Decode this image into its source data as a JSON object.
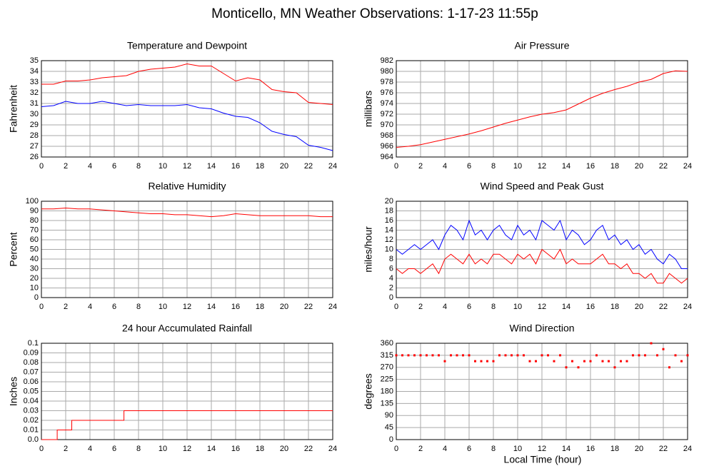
{
  "title": "Monticello, MN Weather Observations: 1-17-23 11:55p",
  "xlabel": "Local Time (hour)",
  "chart_data": [
    {
      "type": "line",
      "title": "Temperature and Dewpoint",
      "ylabel": "Fahrenheit",
      "x": [
        0,
        1,
        2,
        3,
        4,
        5,
        6,
        7,
        8,
        9,
        10,
        11,
        12,
        13,
        14,
        15,
        16,
        17,
        18,
        19,
        20,
        21,
        22,
        23,
        24
      ],
      "series": [
        {
          "name": "Temperature",
          "color": "#ff0000",
          "values": [
            32.8,
            32.8,
            33.1,
            33.1,
            33.2,
            33.4,
            33.5,
            33.6,
            34.0,
            34.2,
            34.3,
            34.4,
            34.7,
            34.5,
            34.5,
            33.8,
            33.1,
            33.4,
            33.2,
            32.3,
            32.1,
            32.0,
            31.1,
            31.0,
            30.9
          ]
        },
        {
          "name": "Dewpoint",
          "color": "#0000ff",
          "values": [
            30.7,
            30.8,
            31.2,
            31.0,
            31.0,
            31.2,
            31.0,
            30.8,
            30.9,
            30.8,
            30.8,
            30.8,
            30.9,
            30.6,
            30.5,
            30.1,
            29.8,
            29.7,
            29.2,
            28.4,
            28.1,
            27.9,
            27.1,
            26.9,
            26.6
          ]
        }
      ],
      "xlim": [
        0,
        24
      ],
      "xticks": [
        0,
        2,
        4,
        6,
        8,
        10,
        12,
        14,
        16,
        18,
        20,
        22,
        24
      ],
      "ylim": [
        26,
        35
      ],
      "yticks": [
        26,
        27,
        28,
        29,
        30,
        31,
        32,
        33,
        34,
        35
      ],
      "grid": true
    },
    {
      "type": "line",
      "title": "Air Pressure",
      "ylabel": "millibars",
      "x": [
        0,
        1,
        2,
        3,
        4,
        5,
        6,
        7,
        8,
        9,
        10,
        11,
        12,
        13,
        14,
        15,
        16,
        17,
        18,
        19,
        20,
        21,
        22,
        23,
        24
      ],
      "series": [
        {
          "name": "Pressure",
          "color": "#ff0000",
          "values": [
            965.8,
            966.0,
            966.3,
            966.8,
            967.3,
            967.8,
            968.3,
            968.9,
            969.6,
            970.3,
            970.9,
            971.5,
            972.0,
            972.3,
            972.8,
            973.9,
            975.0,
            975.9,
            976.6,
            977.2,
            978.0,
            978.5,
            979.6,
            980.1,
            980.0
          ]
        }
      ],
      "xlim": [
        0,
        24
      ],
      "xticks": [
        0,
        2,
        4,
        6,
        8,
        10,
        12,
        14,
        16,
        18,
        20,
        22,
        24
      ],
      "ylim": [
        964,
        982
      ],
      "yticks": [
        964,
        966,
        968,
        970,
        972,
        974,
        976,
        978,
        980,
        982
      ],
      "grid": true
    },
    {
      "type": "line",
      "title": "Relative Humidity",
      "ylabel": "Percent",
      "x": [
        0,
        1,
        2,
        3,
        4,
        5,
        6,
        7,
        8,
        9,
        10,
        11,
        12,
        13,
        14,
        15,
        16,
        17,
        18,
        19,
        20,
        21,
        22,
        23,
        24
      ],
      "series": [
        {
          "name": "Humidity",
          "color": "#ff0000",
          "values": [
            92,
            92,
            93,
            92,
            92,
            91,
            90,
            89,
            88,
            87,
            87,
            86,
            86,
            85,
            84,
            85,
            87,
            86,
            85,
            85,
            85,
            85,
            85,
            84,
            84
          ]
        }
      ],
      "xlim": [
        0,
        24
      ],
      "xticks": [
        0,
        2,
        4,
        6,
        8,
        10,
        12,
        14,
        16,
        18,
        20,
        22,
        24
      ],
      "ylim": [
        0,
        100
      ],
      "yticks": [
        0,
        10,
        20,
        30,
        40,
        50,
        60,
        70,
        80,
        90,
        100
      ],
      "grid": true
    },
    {
      "type": "line",
      "title": "Wind Speed and Peak Gust",
      "ylabel": "miles/hour",
      "x": [
        0,
        0.5,
        1,
        1.5,
        2,
        2.5,
        3,
        3.5,
        4,
        4.5,
        5,
        5.5,
        6,
        6.5,
        7,
        7.5,
        8,
        8.5,
        9,
        9.5,
        10,
        10.5,
        11,
        11.5,
        12,
        12.5,
        13,
        13.5,
        14,
        14.5,
        15,
        15.5,
        16,
        16.5,
        17,
        17.5,
        18,
        18.5,
        19,
        19.5,
        20,
        20.5,
        21,
        21.5,
        22,
        22.5,
        23,
        23.5,
        24
      ],
      "series": [
        {
          "name": "Peak Gust",
          "color": "#0000ff",
          "values": [
            10,
            9,
            10,
            11,
            10,
            11,
            12,
            10,
            13,
            15,
            14,
            12,
            16,
            13,
            14,
            12,
            14,
            15,
            13,
            12,
            15,
            13,
            14,
            12,
            16,
            15,
            14,
            16,
            12,
            14,
            13,
            11,
            12,
            14,
            15,
            12,
            13,
            11,
            12,
            10,
            11,
            9,
            10,
            8,
            7,
            9,
            8,
            6,
            6
          ]
        },
        {
          "name": "Wind Speed",
          "color": "#ff0000",
          "values": [
            6,
            5,
            6,
            6,
            5,
            6,
            7,
            5,
            8,
            9,
            8,
            7,
            9,
            7,
            8,
            7,
            9,
            9,
            8,
            7,
            9,
            8,
            9,
            7,
            10,
            9,
            8,
            10,
            7,
            8,
            7,
            7,
            7,
            8,
            9,
            7,
            7,
            6,
            7,
            5,
            5,
            4,
            5,
            3,
            3,
            5,
            4,
            3,
            4
          ]
        }
      ],
      "xlim": [
        0,
        24
      ],
      "xticks": [
        0,
        2,
        4,
        6,
        8,
        10,
        12,
        14,
        16,
        18,
        20,
        22,
        24
      ],
      "ylim": [
        0,
        20
      ],
      "yticks": [
        0,
        2,
        4,
        6,
        8,
        10,
        12,
        14,
        16,
        18,
        20
      ],
      "grid": true
    },
    {
      "type": "line",
      "title": "24 hour Accumulated Rainfall",
      "ylabel": "Inches",
      "x": [
        0,
        1.3,
        1.3,
        2.5,
        2.5,
        6.8,
        6.8,
        24
      ],
      "series": [
        {
          "name": "Rainfall",
          "color": "#ff0000",
          "values": [
            0,
            0,
            0.01,
            0.01,
            0.02,
            0.02,
            0.03,
            0.03
          ]
        }
      ],
      "xlim": [
        0,
        24
      ],
      "xticks": [
        0,
        2,
        4,
        6,
        8,
        10,
        12,
        14,
        16,
        18,
        20,
        22,
        24
      ],
      "ylim": [
        0,
        0.1
      ],
      "yticks": [
        {
          "value": 0,
          "label": "0.0"
        },
        0.01,
        0.02,
        0.03,
        0.04,
        0.05,
        0.06,
        0.07,
        0.08,
        0.09,
        0.1
      ],
      "grid": true
    },
    {
      "type": "scatter",
      "title": "Wind Direction",
      "ylabel": "degrees",
      "x": [
        0,
        0.5,
        1,
        1.5,
        2,
        2.5,
        3,
        3.5,
        4,
        4.5,
        5,
        5.5,
        6,
        6.5,
        7,
        7.5,
        8,
        8.5,
        9,
        9.5,
        10,
        10.5,
        11,
        11.5,
        12,
        12.5,
        13,
        13.5,
        14,
        14.5,
        15,
        15.5,
        16,
        16.5,
        17,
        17.5,
        18,
        18.5,
        19,
        19.5,
        20,
        20.5,
        21,
        21.5,
        22,
        22.5,
        23,
        23.5,
        24
      ],
      "series": [
        {
          "name": "Direction",
          "color": "#ff0000",
          "values": [
            315,
            315,
            315,
            315,
            315,
            315,
            315,
            315,
            293,
            315,
            315,
            315,
            315,
            293,
            293,
            293,
            293,
            315,
            315,
            315,
            315,
            315,
            293,
            293,
            315,
            315,
            293,
            315,
            270,
            293,
            270,
            293,
            293,
            315,
            293,
            293,
            270,
            293,
            293,
            315,
            315,
            315,
            360,
            315,
            338,
            270,
            315,
            293,
            315
          ]
        }
      ],
      "xlim": [
        0,
        24
      ],
      "xticks": [
        0,
        2,
        4,
        6,
        8,
        10,
        12,
        14,
        16,
        18,
        20,
        22,
        24
      ],
      "ylim": [
        0,
        360
      ],
      "yticks": [
        0,
        45,
        90,
        135,
        180,
        225,
        270,
        315,
        360
      ],
      "grid": true
    }
  ]
}
